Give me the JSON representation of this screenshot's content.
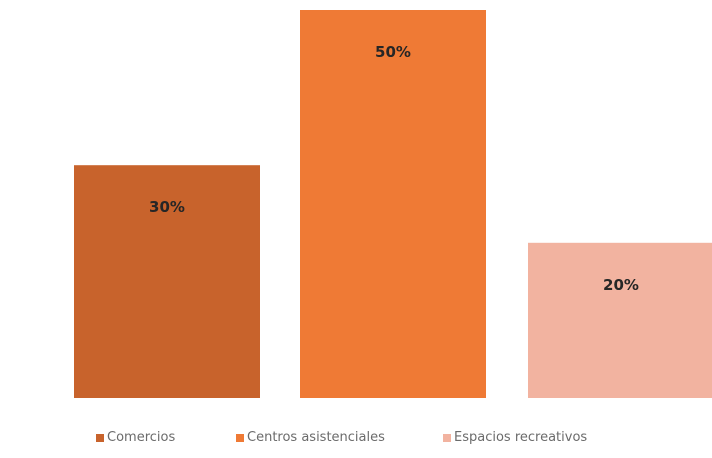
{
  "chart_data": {
    "type": "bar",
    "title": "",
    "xlabel": "",
    "ylabel": "",
    "ylim": [
      0,
      50
    ],
    "grid": false,
    "legend_position": "bottom",
    "categories": [
      "Comercios",
      "Centros asistenciales",
      "Espacios recreativos"
    ],
    "values": [
      30,
      50,
      20
    ],
    "data_labels": [
      "30%",
      "50%",
      "20%"
    ],
    "colors": [
      "#c8632c",
      "#ef7a35",
      "#f2b3a0"
    ],
    "legend": [
      {
        "label": "Comercios",
        "color": "#c8632c"
      },
      {
        "label": "Centros asistenciales",
        "color": "#ef7a35"
      },
      {
        "label": "Espacios recreativos",
        "color": "#f2b3a0"
      }
    ]
  }
}
